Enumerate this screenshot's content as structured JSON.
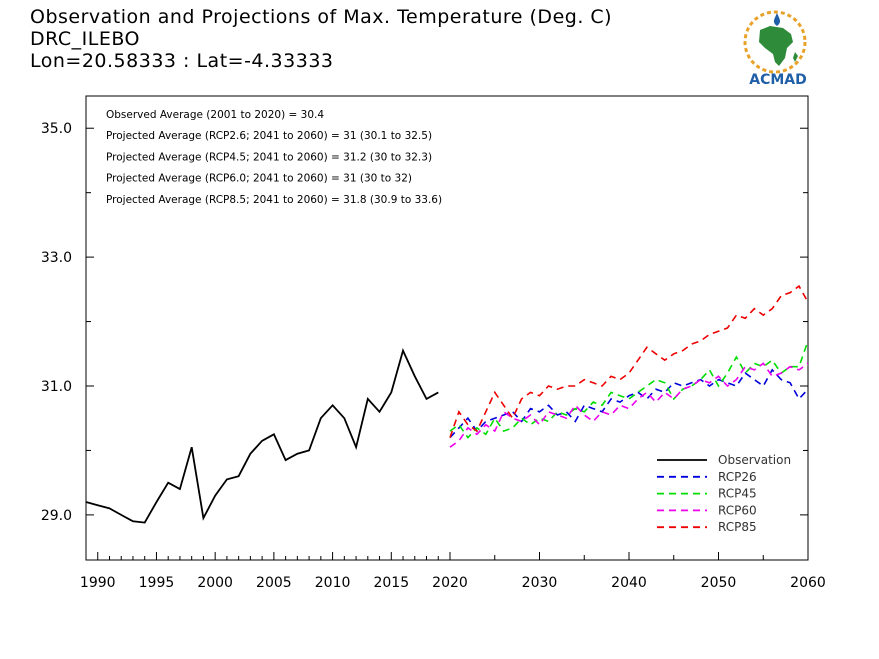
{
  "header": {
    "line1": "Observation and Projections of Max. Temperature (Deg. C)",
    "line2": "DRC_ILEBO",
    "line3": "Lon=20.58333 : Lat=-4.33333"
  },
  "logo": {
    "text": "ACMAD",
    "icon": "africa-logo-icon",
    "color_text": "#1f5fa8",
    "color_africa": "#2e8b3a",
    "color_ring": "#e8a22a"
  },
  "annotations": [
    "Observed Average (2001 to 2020) = 30.4",
    "Projected Average (RCP2.6; 2041 to 2060) = 31 (30.1 to 32.5)",
    "Projected Average (RCP4.5; 2041 to 2060) = 31.2 (30 to 32.3)",
    "Projected Average (RCP6.0; 2041 to 2060) = 31 (30 to 32)",
    "Projected Average (RCP8.5; 2041 to 2060) = 31.8 (30.9 to 33.6)"
  ],
  "chart_data": {
    "type": "line",
    "title": "Observation and Projections of Max. Temperature (Deg. C)",
    "xlim": [
      1989,
      2060
    ],
    "ylim": [
      28.3,
      35.5
    ],
    "x_ticks_left": [
      1990,
      1995,
      2000,
      2005,
      2010,
      2015,
      2020
    ],
    "x_ticks_right": [
      2030,
      2040,
      2050,
      2060
    ],
    "x_tick_labels": [
      "1990",
      "1995",
      "2000",
      "2005",
      "2010",
      "2015",
      "2020",
      "2030",
      "2040",
      "2050",
      "2060"
    ],
    "y_ticks": [
      29.0,
      31.0,
      33.0,
      35.0
    ],
    "y_tick_labels": [
      "29.0",
      "31.0",
      "33.0",
      "35.0"
    ],
    "legend_position": "bottom-right",
    "series": [
      {
        "name": "Observation",
        "color": "#000000",
        "dash": false,
        "x": [
          1989,
          1990,
          1991,
          1992,
          1993,
          1994,
          1995,
          1996,
          1997,
          1998,
          1999,
          2000,
          2001,
          2002,
          2003,
          2004,
          2005,
          2006,
          2007,
          2008,
          2009,
          2010,
          2011,
          2012,
          2013,
          2014,
          2015,
          2016,
          2017,
          2018,
          2019
        ],
        "y": [
          29.2,
          29.15,
          29.1,
          29.0,
          28.9,
          28.88,
          29.2,
          29.5,
          29.4,
          30.05,
          28.95,
          29.3,
          29.55,
          29.6,
          29.95,
          30.15,
          30.25,
          29.85,
          29.95,
          30.0,
          30.5,
          30.7,
          30.5,
          30.05,
          30.8,
          30.6,
          30.9,
          31.55,
          31.15,
          30.8,
          30.9
        ]
      },
      {
        "name": "RCP26",
        "color": "#0000dd",
        "dash": true,
        "x": [
          2020,
          2021,
          2022,
          2023,
          2024,
          2025,
          2026,
          2027,
          2028,
          2029,
          2030,
          2031,
          2032,
          2033,
          2034,
          2035,
          2036,
          2037,
          2038,
          2039,
          2040,
          2041,
          2042,
          2043,
          2044,
          2045,
          2046,
          2047,
          2048,
          2049,
          2050,
          2051,
          2052,
          2053,
          2054,
          2055,
          2056,
          2057,
          2058,
          2059,
          2060
        ],
        "y": [
          30.2,
          30.35,
          30.5,
          30.3,
          30.45,
          30.5,
          30.55,
          30.6,
          30.45,
          30.65,
          30.6,
          30.7,
          30.55,
          30.6,
          30.45,
          30.7,
          30.65,
          30.6,
          30.8,
          30.75,
          30.85,
          30.9,
          30.8,
          30.95,
          30.9,
          31.05,
          31.0,
          31.05,
          31.1,
          31.0,
          31.1,
          31.05,
          31.0,
          31.2,
          31.1,
          31.0,
          31.25,
          31.1,
          31.05,
          30.8,
          30.95
        ]
      },
      {
        "name": "RCP45",
        "color": "#00dd00",
        "dash": true,
        "x": [
          2020,
          2021,
          2022,
          2023,
          2024,
          2025,
          2026,
          2027,
          2028,
          2029,
          2030,
          2031,
          2032,
          2033,
          2034,
          2035,
          2036,
          2037,
          2038,
          2039,
          2040,
          2041,
          2042,
          2043,
          2044,
          2045,
          2046,
          2047,
          2048,
          2049,
          2050,
          2051,
          2052,
          2053,
          2054,
          2055,
          2056,
          2057,
          2058,
          2059,
          2060
        ],
        "y": [
          30.3,
          30.4,
          30.2,
          30.35,
          30.25,
          30.5,
          30.3,
          30.35,
          30.5,
          30.4,
          30.5,
          30.45,
          30.6,
          30.55,
          30.65,
          30.6,
          30.75,
          30.7,
          30.9,
          30.85,
          30.8,
          30.9,
          31.0,
          31.1,
          31.05,
          30.8,
          30.95,
          31.0,
          31.1,
          31.25,
          31.0,
          31.2,
          31.45,
          31.2,
          31.35,
          31.3,
          31.4,
          31.2,
          31.3,
          31.3,
          31.7
        ]
      },
      {
        "name": "RCP60",
        "color": "#ee00ee",
        "dash": true,
        "x": [
          2020,
          2021,
          2022,
          2023,
          2024,
          2025,
          2026,
          2027,
          2028,
          2029,
          2030,
          2031,
          2032,
          2033,
          2034,
          2035,
          2036,
          2037,
          2038,
          2039,
          2040,
          2041,
          2042,
          2043,
          2044,
          2045,
          2046,
          2047,
          2048,
          2049,
          2050,
          2051,
          2052,
          2053,
          2054,
          2055,
          2056,
          2057,
          2058,
          2059,
          2060
        ],
        "y": [
          30.05,
          30.15,
          30.35,
          30.25,
          30.4,
          30.3,
          30.6,
          30.5,
          30.45,
          30.55,
          30.4,
          30.6,
          30.55,
          30.5,
          30.7,
          30.55,
          30.45,
          30.6,
          30.55,
          30.7,
          30.65,
          30.8,
          30.9,
          30.75,
          30.9,
          30.8,
          30.95,
          31.0,
          31.1,
          31.05,
          31.15,
          31.0,
          31.1,
          31.3,
          31.25,
          31.35,
          31.15,
          31.2,
          31.3,
          31.25,
          31.35
        ]
      },
      {
        "name": "RCP85",
        "color": "#ee0000",
        "dash": true,
        "x": [
          2020,
          2021,
          2022,
          2023,
          2024,
          2025,
          2026,
          2027,
          2028,
          2029,
          2030,
          2031,
          2032,
          2033,
          2034,
          2035,
          2036,
          2037,
          2038,
          2039,
          2040,
          2041,
          2042,
          2043,
          2044,
          2045,
          2046,
          2047,
          2048,
          2049,
          2050,
          2051,
          2052,
          2053,
          2054,
          2055,
          2056,
          2057,
          2058,
          2059,
          2060
        ],
        "y": [
          30.2,
          30.6,
          30.4,
          30.3,
          30.6,
          30.9,
          30.7,
          30.5,
          30.8,
          30.9,
          30.85,
          31.0,
          30.95,
          31.0,
          31.0,
          31.1,
          31.05,
          31.0,
          31.15,
          31.1,
          31.2,
          31.4,
          31.6,
          31.5,
          31.4,
          31.5,
          31.55,
          31.65,
          31.7,
          31.8,
          31.85,
          31.9,
          32.1,
          32.05,
          32.2,
          32.1,
          32.2,
          32.4,
          32.45,
          32.55,
          32.3
        ]
      }
    ]
  }
}
